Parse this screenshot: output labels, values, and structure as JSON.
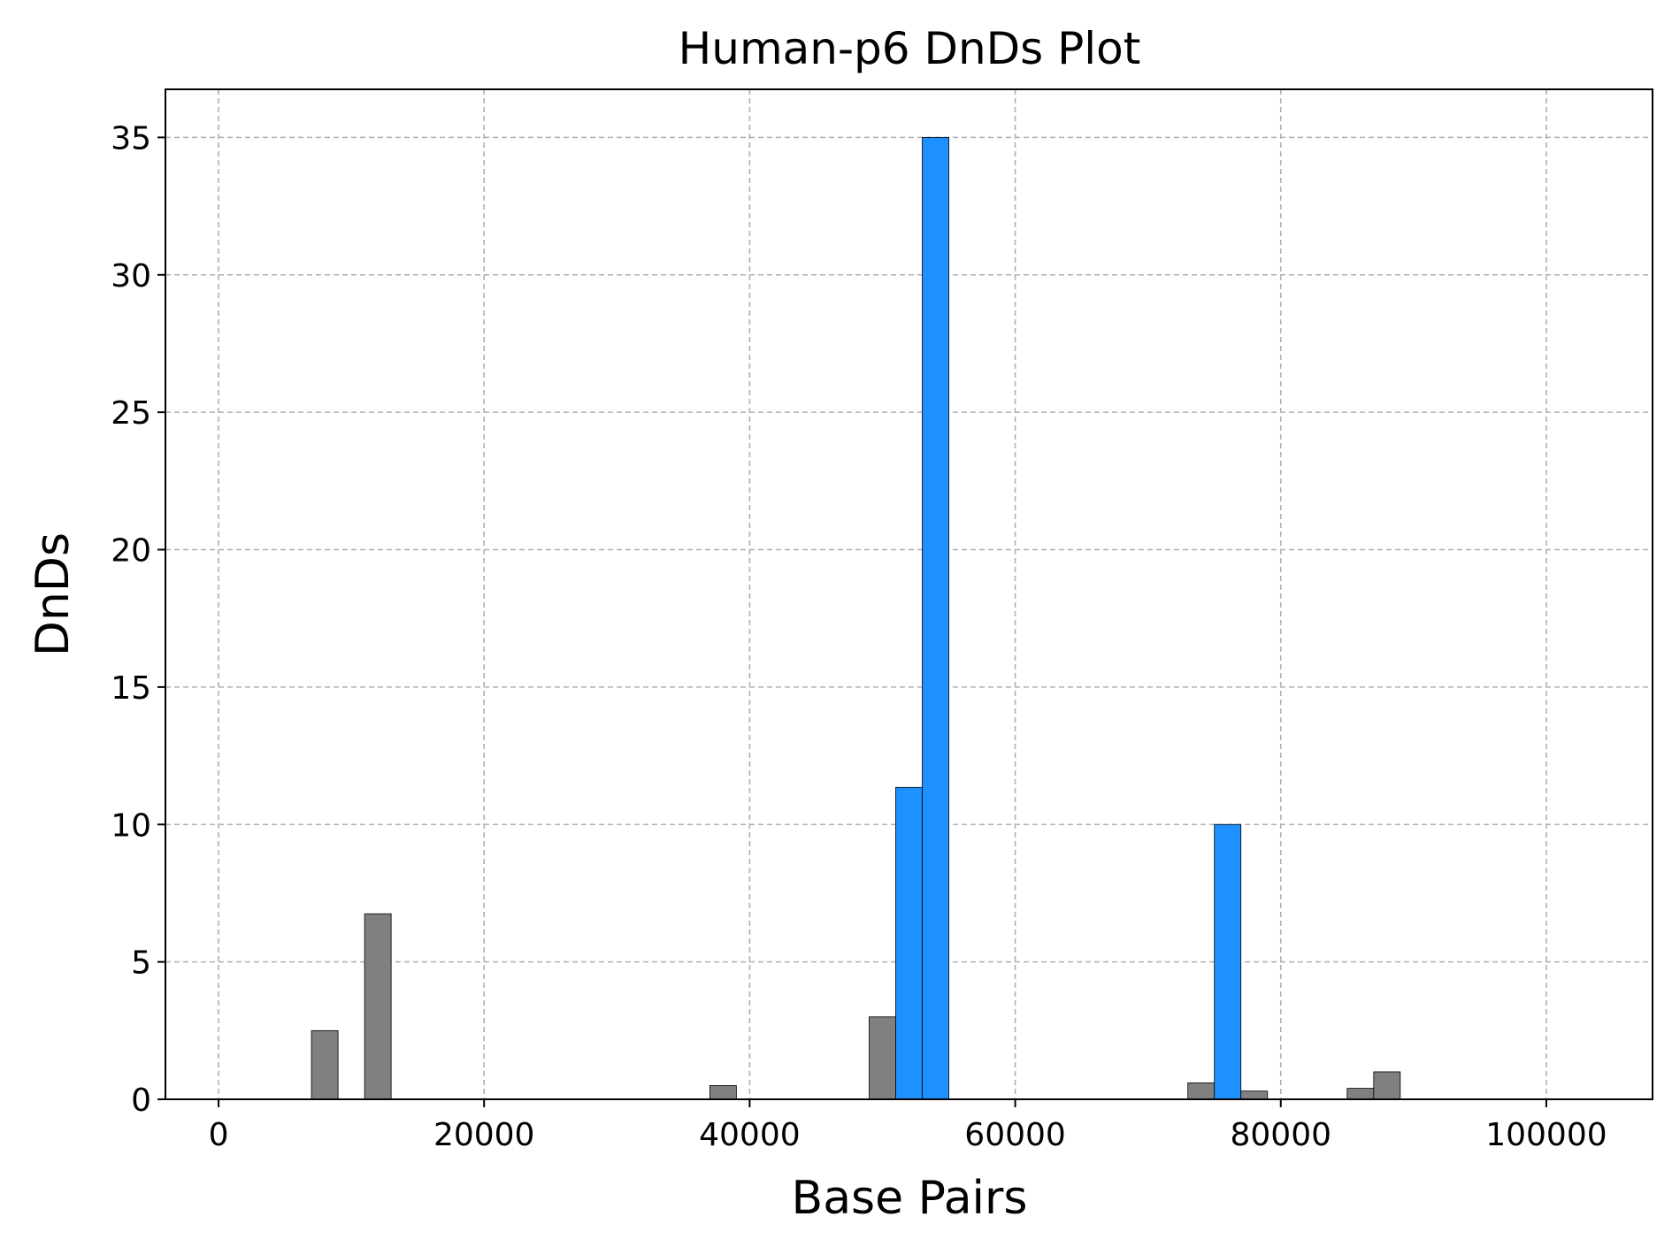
{
  "chart_data": {
    "type": "bar",
    "title": "Human-p6 DnDs Plot",
    "xlabel": "Base Pairs",
    "ylabel": "DnDs",
    "xlim": [
      -4000,
      108000
    ],
    "ylim": [
      0,
      36.75
    ],
    "xticks": [
      0,
      20000,
      40000,
      60000,
      80000,
      100000
    ],
    "yticks": [
      0,
      5,
      10,
      15,
      20,
      25,
      30,
      35
    ],
    "bar_width": 2000,
    "grid": true,
    "colors": {
      "highlight": "#1e90ff",
      "normal": "#808080"
    },
    "bars": [
      {
        "x": 7000,
        "value": 2.5,
        "highlight": false
      },
      {
        "x": 11000,
        "value": 6.75,
        "highlight": false
      },
      {
        "x": 37000,
        "value": 0.5,
        "highlight": false
      },
      {
        "x": 49000,
        "value": 3.0,
        "highlight": false
      },
      {
        "x": 51000,
        "value": 11.35,
        "highlight": true
      },
      {
        "x": 53000,
        "value": 35.0,
        "highlight": true
      },
      {
        "x": 73000,
        "value": 0.6,
        "highlight": false
      },
      {
        "x": 75000,
        "value": 10.0,
        "highlight": true
      },
      {
        "x": 77000,
        "value": 0.3,
        "highlight": false
      },
      {
        "x": 85000,
        "value": 0.4,
        "highlight": false
      },
      {
        "x": 87000,
        "value": 1.0,
        "highlight": false
      }
    ]
  }
}
